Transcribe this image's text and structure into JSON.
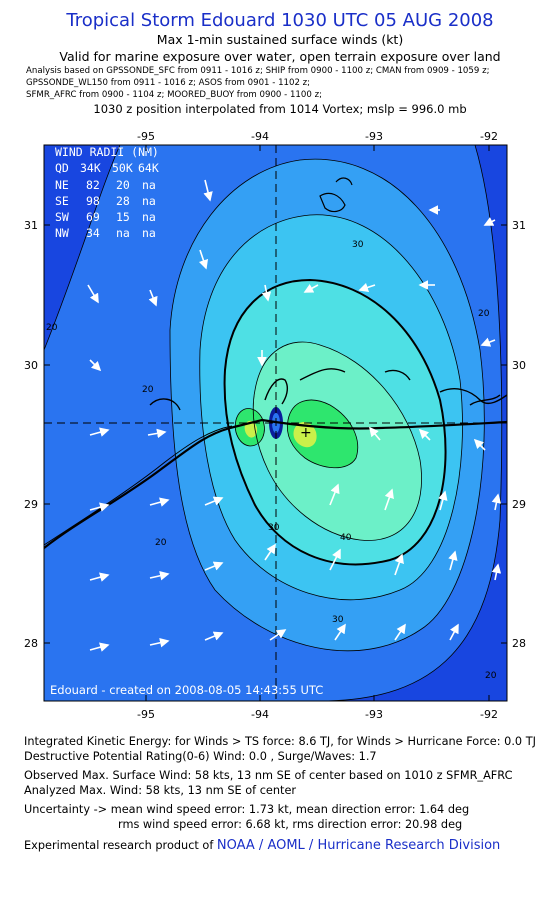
{
  "header": {
    "title": "Tropical Storm Edouard 1030 UTC 05 AUG 2008",
    "subtitle": "Max 1-min sustained surface winds (kt)",
    "validity": "Valid for marine exposure over water, open terrain exposure over land",
    "analysis_lines": [
      "Analysis based on  GPSSONDE_SFC from 0911 - 1016 z;  SHIP from 0900 - 1100 z;  CMAN from 0909 - 1059 z;",
      "GPSSONDE_WL150 from 0911 - 1016 z;  ASOS from 0901 - 1102 z;",
      "SFMR_AFRC from 0900 - 1104 z;  MOORED_BUOY from 0900 - 1100 z;"
    ],
    "position_line": "1030 z position interpolated from 1014 Vortex; mslp = 996.0 mb"
  },
  "map": {
    "x_ticks": [
      "-95",
      "-94",
      "-93",
      "-92"
    ],
    "y_ticks": [
      "31",
      "30",
      "29",
      "28"
    ],
    "contour_labels": [
      "30",
      "30",
      "20",
      "20",
      "20",
      "20",
      "40",
      "30",
      "20"
    ],
    "wind_radii": {
      "title": "WIND RADII (NM)",
      "header": [
        "QD",
        "34K",
        "50K",
        "64K"
      ],
      "rows": [
        [
          "NE",
          "82",
          "20",
          "na"
        ],
        [
          "SE",
          "98",
          "28",
          "na"
        ],
        [
          "SW",
          "69",
          "15",
          "na"
        ],
        [
          "NW",
          "34",
          "na",
          "na"
        ]
      ]
    },
    "created": "Edouard - created on 2008-08-05 14:43:55 UTC",
    "colors": {
      "outer": "#1846e0",
      "c1": "#2a74f0",
      "c2": "#34a0f4",
      "c3": "#3cc4f2",
      "c4": "#4ee0e4",
      "c5": "#6cf0c8",
      "c6": "#2ee66e",
      "c7": "#caf04a"
    }
  },
  "footer": {
    "ike": "Integrated Kinetic Energy:  for Winds > TS force: 8.6 TJ,  for Winds > Hurricane Force: 0.0 TJ",
    "dpr": "Destructive Potential Rating(0-6)   Wind: 0.0 , Surge/Waves: 1.7",
    "obs": "Observed Max. Surface Wind: 58 kts, 13 nm SE of center based on 1010 z SFMR_AFRC",
    "analyzed": "Analyzed Max. Wind: 58 kts, 13 nm SE of center",
    "uncert1": "Uncertainty -> mean wind speed error: 1.73 kt,   mean direction error: 1.64 deg",
    "uncert2": "rms wind speed error: 6.68 kt,   rms direction error: 20.98 deg",
    "product_prefix": "Experimental research product of",
    "product_link": "NOAA / AOML / Hurricane Research Division"
  }
}
